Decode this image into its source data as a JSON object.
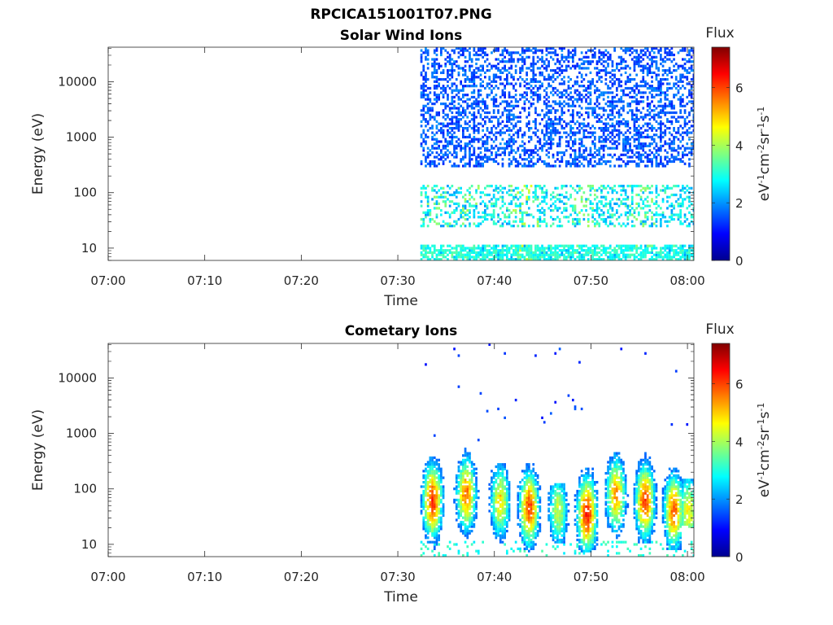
{
  "figure": {
    "title": "RPCICA151001T07.PNG",
    "colors": {
      "background": "#ffffff",
      "axis": "#262626",
      "text": "#262626"
    }
  },
  "chart_data": [
    {
      "type": "heatmap",
      "title": "Solar Wind Ions",
      "xlabel": "Time",
      "ylabel": "Energy (eV)",
      "x_ticks": [
        "07:00",
        "07:10",
        "07:20",
        "07:30",
        "07:40",
        "07:50",
        "08:00"
      ],
      "x_range": [
        "07:00",
        "08:00:40"
      ],
      "y_scale": "log",
      "y_ticks": [
        "10",
        "100",
        "1000",
        "10000"
      ],
      "y_range": [
        6,
        42000
      ],
      "data_start": "07:32:20",
      "colorbar": {
        "label": "Flux",
        "unit": "eV⁻¹cm⁻²sr⁻¹s⁻¹",
        "ticks": [
          "0",
          "2",
          "4",
          "6"
        ],
        "range": [
          0,
          7.4
        ],
        "colormap": "jet"
      },
      "flux_columns": [
        {
          "time": "07:32:30",
          "ion_energy_bands_eV": [
            [
              6,
              11
            ],
            [
              25,
              140
            ],
            [
              400,
              15000
            ]
          ],
          "peak_flux": 3.4
        },
        {
          "time": "07:33:30",
          "ion_energy_bands_eV": [
            [
              6,
              11
            ],
            [
              25,
              140
            ],
            [
              300,
              15000
            ]
          ],
          "peak_flux": 3.8
        },
        {
          "time": "07:35:00",
          "ion_energy_bands_eV": [
            [
              6,
              11
            ],
            [
              25,
              140
            ],
            [
              300,
              15000
            ]
          ],
          "peak_flux": 3.6
        },
        {
          "time": "07:37:00",
          "ion_energy_bands_eV": [
            [
              6,
              11
            ],
            [
              25,
              140
            ],
            [
              300,
              15000
            ]
          ],
          "peak_flux": 3.9
        },
        {
          "time": "07:40:00",
          "ion_energy_bands_eV": [
            [
              6,
              11
            ],
            [
              25,
              140
            ],
            [
              300,
              15000
            ]
          ],
          "peak_flux": 3.3
        },
        {
          "time": "07:43:00",
          "ion_energy_bands_eV": [
            [
              6,
              11
            ],
            [
              25,
              140
            ],
            [
              300,
              15000
            ]
          ],
          "peak_flux": 4.2
        },
        {
          "time": "07:46:00",
          "ion_energy_bands_eV": [
            [
              6,
              11
            ],
            [
              25,
              140
            ],
            [
              300,
              15000
            ]
          ],
          "peak_flux": 3.3
        },
        {
          "time": "07:49:00",
          "ion_energy_bands_eV": [
            [
              6,
              11
            ],
            [
              25,
              140
            ],
            [
              300,
              15000
            ]
          ],
          "peak_flux": 3.8
        },
        {
          "time": "07:52:00",
          "ion_energy_bands_eV": [
            [
              6,
              11
            ],
            [
              25,
              140
            ],
            [
              300,
              15000
            ]
          ],
          "peak_flux": 3.4
        },
        {
          "time": "07:55:00",
          "ion_energy_bands_eV": [
            [
              6,
              11
            ],
            [
              25,
              140
            ],
            [
              300,
              15000
            ]
          ],
          "peak_flux": 3.7
        },
        {
          "time": "07:58:00",
          "ion_energy_bands_eV": [
            [
              6,
              11
            ],
            [
              25,
              140
            ],
            [
              300,
              15000
            ]
          ],
          "peak_flux": 3.3
        },
        {
          "time": "08:00:00",
          "ion_energy_bands_eV": [
            [
              6,
              11
            ],
            [
              25,
              140
            ],
            [
              300,
              15000
            ]
          ],
          "peak_flux": 3.0
        }
      ]
    },
    {
      "type": "heatmap",
      "title": "Cometary Ions",
      "xlabel": "Time",
      "ylabel": "Energy (eV)",
      "x_ticks": [
        "07:00",
        "07:10",
        "07:20",
        "07:30",
        "07:40",
        "07:50",
        "08:00"
      ],
      "x_range": [
        "07:00",
        "08:00:40"
      ],
      "y_scale": "log",
      "y_ticks": [
        "10",
        "100",
        "1000",
        "10000"
      ],
      "y_range": [
        6,
        42000
      ],
      "data_start": "07:32:20",
      "colorbar": {
        "label": "Flux",
        "unit": "eV⁻¹cm⁻²sr⁻¹s⁻¹",
        "ticks": [
          "0",
          "2",
          "4",
          "6"
        ],
        "range": [
          0,
          7.4
        ],
        "colormap": "jet"
      },
      "bursts": [
        {
          "time": "07:33:30",
          "peak_energy_eV": 60,
          "low_eV": 7,
          "high_eV": 700,
          "peak_flux": 6.2
        },
        {
          "time": "07:37:00",
          "peak_energy_eV": 80,
          "low_eV": 7,
          "high_eV": 550,
          "peak_flux": 5.6
        },
        {
          "time": "07:40:30",
          "peak_energy_eV": 60,
          "low_eV": 10,
          "high_eV": 300,
          "peak_flux": 4.8
        },
        {
          "time": "07:43:30",
          "peak_energy_eV": 45,
          "low_eV": 7,
          "high_eV": 450,
          "peak_flux": 6.0
        },
        {
          "time": "07:46:30",
          "peak_energy_eV": 40,
          "low_eV": 10,
          "high_eV": 130,
          "peak_flux": 4.2
        },
        {
          "time": "07:49:30",
          "peak_energy_eV": 35,
          "low_eV": 7,
          "high_eV": 300,
          "peak_flux": 6.4
        },
        {
          "time": "07:52:30",
          "peak_energy_eV": 80,
          "low_eV": 10,
          "high_eV": 500,
          "peak_flux": 5.4
        },
        {
          "time": "07:55:30",
          "peak_energy_eV": 60,
          "low_eV": 10,
          "high_eV": 500,
          "peak_flux": 6.0
        },
        {
          "time": "07:58:30",
          "peak_energy_eV": 40,
          "low_eV": 8,
          "high_eV": 250,
          "peak_flux": 5.8
        },
        {
          "time": "08:00:00",
          "peak_energy_eV": 40,
          "low_eV": 20,
          "high_eV": 150,
          "peak_flux": 4.6
        }
      ]
    }
  ]
}
